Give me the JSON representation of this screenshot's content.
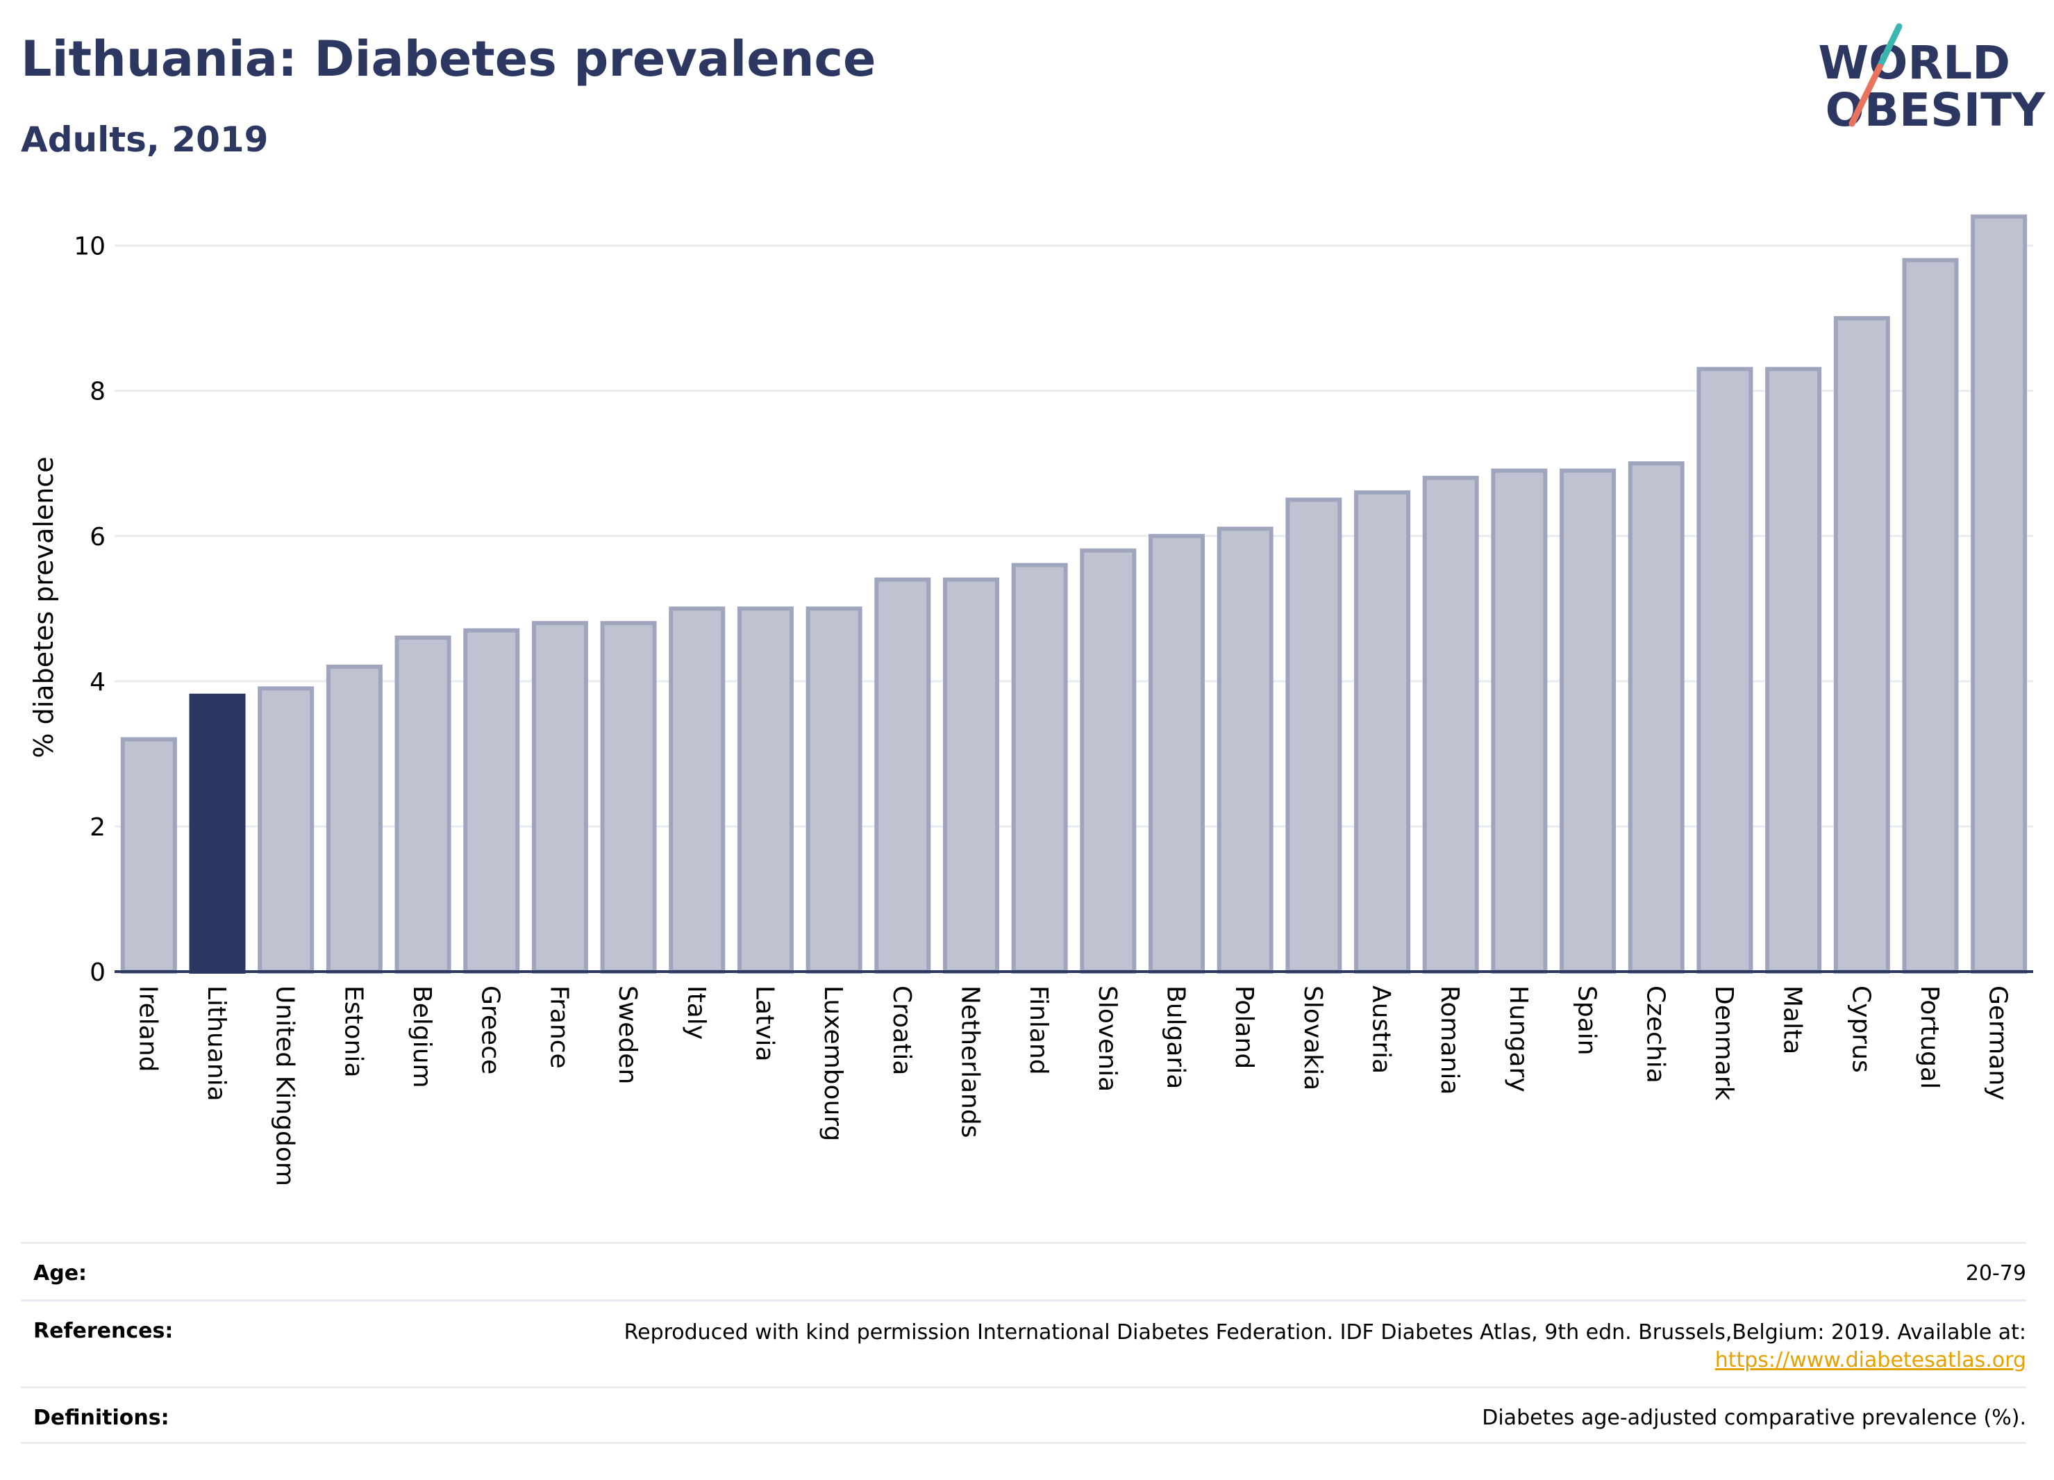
{
  "header": {
    "title": "Lithuania: Diabetes prevalence",
    "subtitle": "Adults, 2019"
  },
  "logo": {
    "line1": "WORLD",
    "line2": "OBESITY",
    "colors": {
      "text": "#2c3862",
      "slash_teal": "#3bb5b0",
      "slash_coral": "#e9735e"
    }
  },
  "chart_data": {
    "type": "bar",
    "title": "Lithuania: Diabetes prevalence",
    "subtitle": "Adults, 2019",
    "xlabel": "",
    "ylabel": "% diabetes prevalence",
    "ylim": [
      0,
      10.8
    ],
    "yticks": [
      0,
      2,
      4,
      6,
      8,
      10
    ],
    "grid": true,
    "highlight": "Lithuania",
    "colors": {
      "bar": "#bfc3d1",
      "bar_border": "#9fa5bc",
      "highlight": "#2c3862",
      "grid": "#e8ecf1",
      "axis": "#2c3862"
    },
    "categories": [
      "Ireland",
      "Lithuania",
      "United Kingdom",
      "Estonia",
      "Belgium",
      "Greece",
      "France",
      "Sweden",
      "Italy",
      "Latvia",
      "Luxembourg",
      "Croatia",
      "Netherlands",
      "Finland",
      "Slovenia",
      "Bulgaria",
      "Poland",
      "Slovakia",
      "Austria",
      "Romania",
      "Hungary",
      "Spain",
      "Czechia",
      "Denmark",
      "Malta",
      "Cyprus",
      "Portugal",
      "Germany"
    ],
    "values": [
      3.2,
      3.8,
      3.9,
      4.2,
      4.6,
      4.7,
      4.8,
      4.8,
      5.0,
      5.0,
      5.0,
      5.4,
      5.4,
      5.6,
      5.8,
      6.0,
      6.1,
      6.5,
      6.6,
      6.8,
      6.9,
      6.9,
      7.0,
      8.3,
      8.3,
      9.0,
      9.8,
      10.4
    ]
  },
  "info": {
    "age_label": "Age:",
    "age_value": "20-79",
    "references_label": "References:",
    "references_text": "Reproduced with kind permission International Diabetes Federation. IDF Diabetes Atlas, 9th edn. Brussels,Belgium: 2019. Available at:",
    "references_link": "https://www.diabetesatlas.org",
    "definitions_label": "Definitions:",
    "definitions_text": "Diabetes age-adjusted comparative prevalence (%)."
  }
}
